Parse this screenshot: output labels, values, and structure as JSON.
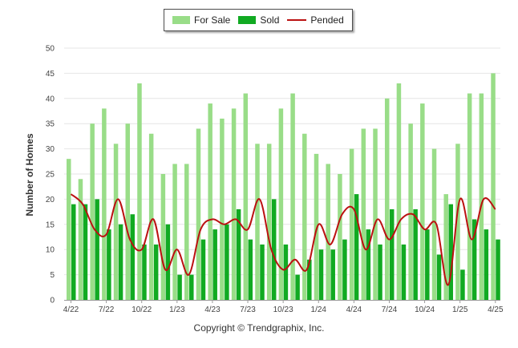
{
  "legend": {
    "for_sale": "For Sale",
    "sold": "Sold",
    "pended": "Pended"
  },
  "footer": "Copyright © Trendgraphix, Inc.",
  "colors": {
    "for_sale": "#99dd88",
    "sold": "#11aa22",
    "pended": "#bb1111",
    "grid": "#e6e6e6"
  },
  "chart_data": {
    "type": "bar",
    "ylabel": "Number of Homes",
    "ylim": [
      0,
      50
    ],
    "yticks": [
      0,
      5,
      10,
      15,
      20,
      25,
      30,
      35,
      40,
      45,
      50
    ],
    "grid": true,
    "legend_position": "top-center",
    "x_tick_labels": [
      "4/22",
      "7/22",
      "10/22",
      "1/23",
      "4/23",
      "7/23",
      "10/23",
      "1/24",
      "4/24",
      "7/24",
      "10/24",
      "1/25",
      "4/25"
    ],
    "categories": [
      "4/22",
      "5/22",
      "6/22",
      "7/22",
      "8/22",
      "9/22",
      "10/22",
      "11/22",
      "12/22",
      "1/23",
      "2/23",
      "3/23",
      "4/23",
      "5/23",
      "6/23",
      "7/23",
      "8/23",
      "9/23",
      "10/23",
      "11/23",
      "12/23",
      "1/24",
      "2/24",
      "3/24",
      "4/24",
      "5/24",
      "6/24",
      "7/24",
      "8/24",
      "9/24",
      "10/24",
      "11/24",
      "12/24",
      "1/25",
      "2/25",
      "3/25",
      "4/25"
    ],
    "series": [
      {
        "name": "For Sale",
        "type": "bar",
        "values": [
          28,
          24,
          35,
          38,
          31,
          35,
          43,
          33,
          25,
          27,
          27,
          34,
          39,
          36,
          38,
          41,
          31,
          31,
          38,
          41,
          33,
          29,
          27,
          25,
          30,
          34,
          34,
          40,
          43,
          35,
          39,
          30,
          21,
          31,
          41,
          41,
          45
        ]
      },
      {
        "name": "Sold",
        "type": "bar",
        "values": [
          19,
          19,
          20,
          14,
          15,
          17,
          11,
          11,
          15,
          5,
          5,
          12,
          14,
          15,
          18,
          12,
          11,
          20,
          11,
          5,
          8,
          10,
          10,
          12,
          21,
          14,
          11,
          18,
          11,
          18,
          14,
          9,
          19,
          6,
          16,
          14,
          12
        ]
      },
      {
        "name": "Pended",
        "type": "line",
        "values": [
          21,
          19,
          14,
          13,
          20,
          12,
          10,
          16,
          6,
          10,
          5,
          14,
          16,
          15,
          16,
          14,
          20,
          10,
          6,
          8,
          6,
          15,
          11,
          17,
          18,
          10,
          16,
          12,
          16,
          17,
          14,
          15,
          3,
          20,
          12,
          20,
          18
        ]
      }
    ]
  }
}
